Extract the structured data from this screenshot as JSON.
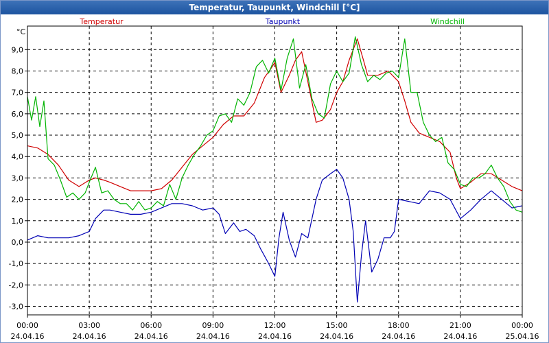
{
  "window": {
    "title": "Temperatur, Taupunkt, Windchill [°C]"
  },
  "colors": {
    "temperatur": "#d00000",
    "taupunkt": "#0000b4",
    "windchill": "#00b400",
    "grid": "#000000",
    "titlebar": "#2a62ac"
  },
  "chart_data": {
    "type": "line",
    "title": "Temperatur, Taupunkt, Windchill [°C]",
    "ylabel": "°C",
    "xlabel": "",
    "x_unit": "hours",
    "xlim": [
      0,
      24
    ],
    "ylim": [
      -3.4,
      10.1
    ],
    "grid": true,
    "legend_position": "top",
    "y_ticks": [
      "9,0",
      "8,0",
      "7,0",
      "6,0",
      "5,0",
      "4,0",
      "3,0",
      "2,0",
      "1,0",
      "0,0",
      "-1,0",
      "-2,0",
      "-3,0"
    ],
    "y_tick_values": [
      9,
      8,
      7,
      6,
      5,
      4,
      3,
      2,
      1,
      0,
      -1,
      -2,
      -3
    ],
    "x_ticks": [
      {
        "time": "00:00",
        "date": "24.04.16"
      },
      {
        "time": "03:00",
        "date": "24.04.16"
      },
      {
        "time": "06:00",
        "date": "24.04.16"
      },
      {
        "time": "09:00",
        "date": "24.04.16"
      },
      {
        "time": "12:00",
        "date": "24.04.16"
      },
      {
        "time": "15:00",
        "date": "24.04.16"
      },
      {
        "time": "18:00",
        "date": "24.04.16"
      },
      {
        "time": "21:00",
        "date": "24.04.16"
      },
      {
        "time": "00:00",
        "date": "25.04.16"
      }
    ],
    "x_tick_values": [
      0,
      3,
      6,
      9,
      12,
      15,
      18,
      21,
      24
    ],
    "series": [
      {
        "name": "Temperatur",
        "color": "#d00000",
        "points": [
          [
            0,
            4.5
          ],
          [
            0.5,
            4.4
          ],
          [
            1,
            4.1
          ],
          [
            1.5,
            3.6
          ],
          [
            2,
            2.9
          ],
          [
            2.5,
            2.6
          ],
          [
            3,
            2.9
          ],
          [
            3.3,
            3.0
          ],
          [
            3.7,
            2.9
          ],
          [
            4,
            2.8
          ],
          [
            4.5,
            2.6
          ],
          [
            5,
            2.4
          ],
          [
            5.5,
            2.4
          ],
          [
            6,
            2.4
          ],
          [
            6.5,
            2.5
          ],
          [
            7,
            2.9
          ],
          [
            7.5,
            3.5
          ],
          [
            8,
            4.1
          ],
          [
            8.5,
            4.5
          ],
          [
            9,
            4.9
          ],
          [
            9.5,
            5.5
          ],
          [
            10,
            5.9
          ],
          [
            10.5,
            5.9
          ],
          [
            11,
            6.5
          ],
          [
            11.5,
            7.7
          ],
          [
            11.8,
            8.1
          ],
          [
            12,
            8.4
          ],
          [
            12.3,
            7.0
          ],
          [
            12.7,
            7.8
          ],
          [
            13,
            8.5
          ],
          [
            13.3,
            8.9
          ],
          [
            13.6,
            7.5
          ],
          [
            14,
            5.6
          ],
          [
            14.3,
            5.7
          ],
          [
            14.7,
            6.2
          ],
          [
            15,
            7.0
          ],
          [
            15.3,
            7.5
          ],
          [
            15.6,
            8.5
          ],
          [
            16,
            9.5
          ],
          [
            16.3,
            8.5
          ],
          [
            16.5,
            7.8
          ],
          [
            17,
            7.8
          ],
          [
            17.5,
            8.0
          ],
          [
            18,
            7.5
          ],
          [
            18.3,
            6.6
          ],
          [
            18.6,
            5.6
          ],
          [
            19,
            5.1
          ],
          [
            19.5,
            4.9
          ],
          [
            20,
            4.7
          ],
          [
            20.5,
            4.2
          ],
          [
            20.8,
            3.0
          ],
          [
            21,
            2.5
          ],
          [
            21.5,
            2.8
          ],
          [
            22,
            3.2
          ],
          [
            22.5,
            3.2
          ],
          [
            23,
            2.9
          ],
          [
            23.5,
            2.6
          ],
          [
            24,
            2.4
          ]
        ]
      },
      {
        "name": "Taupunkt",
        "color": "#0000b4",
        "points": [
          [
            0,
            0.1
          ],
          [
            0.5,
            0.3
          ],
          [
            1,
            0.2
          ],
          [
            1.5,
            0.2
          ],
          [
            2,
            0.2
          ],
          [
            2.5,
            0.3
          ],
          [
            3,
            0.5
          ],
          [
            3.3,
            1.1
          ],
          [
            3.7,
            1.5
          ],
          [
            4,
            1.5
          ],
          [
            4.5,
            1.4
          ],
          [
            5,
            1.3
          ],
          [
            5.5,
            1.3
          ],
          [
            6,
            1.4
          ],
          [
            6.5,
            1.6
          ],
          [
            7,
            1.8
          ],
          [
            7.5,
            1.8
          ],
          [
            8,
            1.7
          ],
          [
            8.5,
            1.5
          ],
          [
            9,
            1.6
          ],
          [
            9.3,
            1.3
          ],
          [
            9.6,
            0.4
          ],
          [
            10,
            0.9
          ],
          [
            10.3,
            0.5
          ],
          [
            10.6,
            0.6
          ],
          [
            11,
            0.3
          ],
          [
            11.3,
            -0.3
          ],
          [
            11.7,
            -1.0
          ],
          [
            12,
            -1.6
          ],
          [
            12.2,
            0.2
          ],
          [
            12.4,
            1.4
          ],
          [
            12.7,
            0.1
          ],
          [
            13,
            -0.7
          ],
          [
            13.3,
            0.4
          ],
          [
            13.6,
            0.2
          ],
          [
            14,
            2.0
          ],
          [
            14.3,
            2.9
          ],
          [
            14.7,
            3.2
          ],
          [
            15,
            3.4
          ],
          [
            15.3,
            3.0
          ],
          [
            15.6,
            2.0
          ],
          [
            15.8,
            0.5
          ],
          [
            16,
            -2.8
          ],
          [
            16.2,
            -0.6
          ],
          [
            16.4,
            1.0
          ],
          [
            16.7,
            -1.4
          ],
          [
            17,
            -0.8
          ],
          [
            17.3,
            0.2
          ],
          [
            17.6,
            0.2
          ],
          [
            17.8,
            0.5
          ],
          [
            18,
            2.0
          ],
          [
            18.5,
            1.9
          ],
          [
            19,
            1.8
          ],
          [
            19.5,
            2.4
          ],
          [
            20,
            2.3
          ],
          [
            20.5,
            2.0
          ],
          [
            21,
            1.1
          ],
          [
            21.5,
            1.5
          ],
          [
            22,
            2.0
          ],
          [
            22.5,
            2.4
          ],
          [
            23,
            2.0
          ],
          [
            23.5,
            1.6
          ],
          [
            24,
            1.7
          ]
        ]
      },
      {
        "name": "Windchill",
        "color": "#00b400",
        "points": [
          [
            0,
            6.8
          ],
          [
            0.2,
            5.7
          ],
          [
            0.4,
            6.8
          ],
          [
            0.6,
            5.4
          ],
          [
            0.8,
            6.6
          ],
          [
            1,
            3.9
          ],
          [
            1.3,
            3.6
          ],
          [
            1.6,
            2.9
          ],
          [
            1.9,
            2.1
          ],
          [
            2.2,
            2.3
          ],
          [
            2.5,
            2.0
          ],
          [
            2.8,
            2.3
          ],
          [
            3,
            2.8
          ],
          [
            3.3,
            3.5
          ],
          [
            3.6,
            2.3
          ],
          [
            3.9,
            2.4
          ],
          [
            4.2,
            2.0
          ],
          [
            4.5,
            1.8
          ],
          [
            4.8,
            1.8
          ],
          [
            5.1,
            1.5
          ],
          [
            5.4,
            1.9
          ],
          [
            5.7,
            1.5
          ],
          [
            6,
            1.6
          ],
          [
            6.3,
            1.9
          ],
          [
            6.6,
            1.7
          ],
          [
            6.9,
            2.7
          ],
          [
            7.2,
            2.0
          ],
          [
            7.5,
            3.0
          ],
          [
            7.8,
            3.6
          ],
          [
            8.1,
            4.1
          ],
          [
            8.4,
            4.5
          ],
          [
            8.7,
            5.0
          ],
          [
            9,
            5.2
          ],
          [
            9.3,
            5.9
          ],
          [
            9.6,
            6.0
          ],
          [
            9.9,
            5.6
          ],
          [
            10.2,
            6.7
          ],
          [
            10.5,
            6.4
          ],
          [
            10.8,
            7.0
          ],
          [
            11.1,
            8.2
          ],
          [
            11.4,
            8.5
          ],
          [
            11.7,
            7.9
          ],
          [
            12,
            8.6
          ],
          [
            12.3,
            7.1
          ],
          [
            12.6,
            8.6
          ],
          [
            12.9,
            9.5
          ],
          [
            13.2,
            7.2
          ],
          [
            13.5,
            8.3
          ],
          [
            13.8,
            6.7
          ],
          [
            14.1,
            6.0
          ],
          [
            14.4,
            5.8
          ],
          [
            14.7,
            7.4
          ],
          [
            15,
            8.0
          ],
          [
            15.3,
            7.5
          ],
          [
            15.6,
            7.9
          ],
          [
            15.9,
            9.6
          ],
          [
            16.2,
            8.3
          ],
          [
            16.5,
            7.5
          ],
          [
            16.8,
            7.8
          ],
          [
            17.1,
            7.6
          ],
          [
            17.4,
            7.9
          ],
          [
            17.7,
            8.0
          ],
          [
            18,
            7.7
          ],
          [
            18.3,
            9.5
          ],
          [
            18.6,
            7.0
          ],
          [
            18.9,
            7.0
          ],
          [
            19.2,
            5.6
          ],
          [
            19.5,
            5.0
          ],
          [
            19.8,
            4.7
          ],
          [
            20.1,
            4.9
          ],
          [
            20.4,
            3.7
          ],
          [
            20.7,
            3.4
          ],
          [
            21,
            2.7
          ],
          [
            21.3,
            2.6
          ],
          [
            21.6,
            3.0
          ],
          [
            21.9,
            3.0
          ],
          [
            22.2,
            3.2
          ],
          [
            22.5,
            3.6
          ],
          [
            22.8,
            3.0
          ],
          [
            23.1,
            2.6
          ],
          [
            23.4,
            1.9
          ],
          [
            23.7,
            1.5
          ],
          [
            24,
            1.4
          ]
        ]
      }
    ]
  }
}
